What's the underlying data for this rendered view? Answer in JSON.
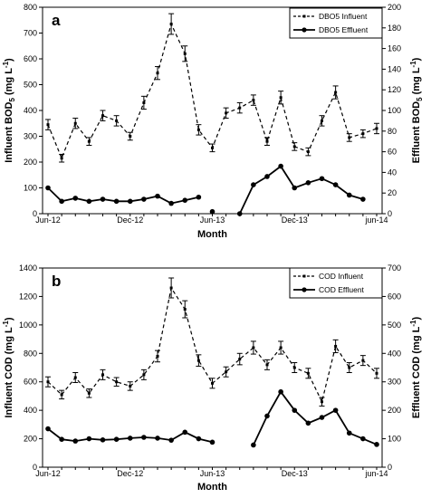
{
  "chart_data": [
    {
      "panel_label": "a",
      "type": "line",
      "xlabel": "Month",
      "x_ticks": [
        "Jun-12",
        "Dec-12",
        "Jun-13",
        "Dec-13",
        "jun-14"
      ],
      "ylabel_left": "Influent BOD5 (mg L-1)",
      "ylabel_left_parts": {
        "pre": "Influent BOD",
        "sub": "5",
        "mid": " (mg L",
        "sup": "-1",
        "post": ")"
      },
      "ylabel_right": "Effluent BOD5 (mg L-1)",
      "ylabel_right_parts": {
        "pre": "Effluent BOD",
        "sub": "5",
        "mid": " (mg L",
        "sup": "-1",
        "post": ")"
      },
      "ylim_left": [
        0,
        800
      ],
      "ylim_right": [
        0,
        200
      ],
      "yticks_left": [
        0,
        100,
        200,
        300,
        400,
        500,
        600,
        700,
        800
      ],
      "yticks_right": [
        0,
        20,
        40,
        60,
        80,
        100,
        120,
        140,
        160,
        180,
        200
      ],
      "legend_position": "top-right",
      "series": [
        {
          "name": "DBO5 Influent",
          "axis": "left",
          "style": "dashed",
          "x": [
            0,
            1,
            2,
            3,
            4,
            5,
            6,
            7,
            8,
            9,
            10,
            11,
            12,
            13,
            14,
            15,
            16,
            17,
            18,
            19,
            20,
            21,
            22,
            23,
            24
          ],
          "values": [
            345,
            215,
            350,
            280,
            380,
            360,
            300,
            430,
            545,
            735,
            620,
            325,
            255,
            390,
            410,
            440,
            280,
            450,
            260,
            240,
            360,
            470,
            295,
            310,
            330
          ],
          "errors": [
            20,
            15,
            20,
            15,
            20,
            20,
            15,
            25,
            25,
            40,
            30,
            20,
            15,
            20,
            20,
            20,
            15,
            25,
            15,
            15,
            20,
            25,
            15,
            15,
            20
          ]
        },
        {
          "name": "DBO5 Effluent",
          "axis": "right",
          "style": "solid",
          "x": [
            0,
            1,
            2,
            3,
            4,
            5,
            6,
            7,
            8,
            9,
            10,
            11,
            12,
            13,
            14,
            15,
            16,
            17,
            18,
            19,
            20,
            21,
            22,
            23,
            24
          ],
          "values": [
            25,
            12,
            15,
            12,
            14,
            12,
            12,
            14,
            17,
            10,
            13,
            16,
            2,
            null,
            0,
            28,
            36,
            46,
            25,
            30,
            34,
            28,
            18,
            14,
            null
          ],
          "segments": [
            [
              0,
              11
            ],
            [
              12,
              12
            ],
            [
              14,
              23
            ]
          ]
        }
      ]
    },
    {
      "panel_label": "b",
      "type": "line",
      "xlabel": "Month",
      "x_ticks": [
        "Jun-12",
        "Dec-12",
        "Jun-13",
        "Dec-13",
        "jun-14"
      ],
      "ylabel_left": "Influent COD (mg L-1)",
      "ylabel_left_parts": {
        "pre": "Influent COD",
        "sub": "",
        "mid": " (mg L",
        "sup": "-1",
        "post": ")"
      },
      "ylabel_right": "Effluent COD (mg L-1)",
      "ylabel_right_parts": {
        "pre": "Effluent COD",
        "sub": "",
        "mid": " (mg L",
        "sup": "-1",
        "post": ")"
      },
      "ylim_left": [
        0,
        1400
      ],
      "ylim_right": [
        0,
        700
      ],
      "yticks_left": [
        0,
        200,
        400,
        600,
        800,
        1000,
        1200,
        1400
      ],
      "yticks_right": [
        0,
        100,
        200,
        300,
        400,
        500,
        600,
        700
      ],
      "legend_position": "top-right",
      "series": [
        {
          "name": "COD Influent",
          "axis": "left",
          "style": "dashed",
          "x": [
            0,
            1,
            2,
            3,
            4,
            5,
            6,
            7,
            8,
            9,
            10,
            11,
            12,
            13,
            14,
            15,
            16,
            17,
            18,
            19,
            20,
            21,
            22,
            23,
            24
          ],
          "values": [
            600,
            510,
            630,
            520,
            650,
            600,
            570,
            650,
            780,
            1260,
            1110,
            750,
            590,
            670,
            760,
            840,
            720,
            840,
            700,
            660,
            460,
            850,
            700,
            750,
            660
          ],
          "errors": [
            35,
            30,
            35,
            30,
            35,
            30,
            30,
            35,
            40,
            70,
            60,
            40,
            35,
            35,
            40,
            45,
            35,
            45,
            35,
            35,
            30,
            45,
            35,
            35,
            35
          ]
        },
        {
          "name": "COD Effluent",
          "axis": "right",
          "style": "solid",
          "x": [
            0,
            1,
            2,
            3,
            4,
            5,
            6,
            7,
            8,
            9,
            10,
            11,
            12,
            13,
            14,
            15,
            16,
            17,
            18,
            19,
            20,
            21,
            22,
            23,
            24
          ],
          "values": [
            135,
            98,
            92,
            100,
            96,
            98,
            102,
            105,
            102,
            95,
            123,
            100,
            88,
            null,
            null,
            78,
            180,
            265,
            200,
            155,
            175,
            200,
            120,
            100,
            80
          ],
          "segments": [
            [
              0,
              12
            ],
            [
              15,
              24
            ]
          ]
        }
      ]
    }
  ]
}
